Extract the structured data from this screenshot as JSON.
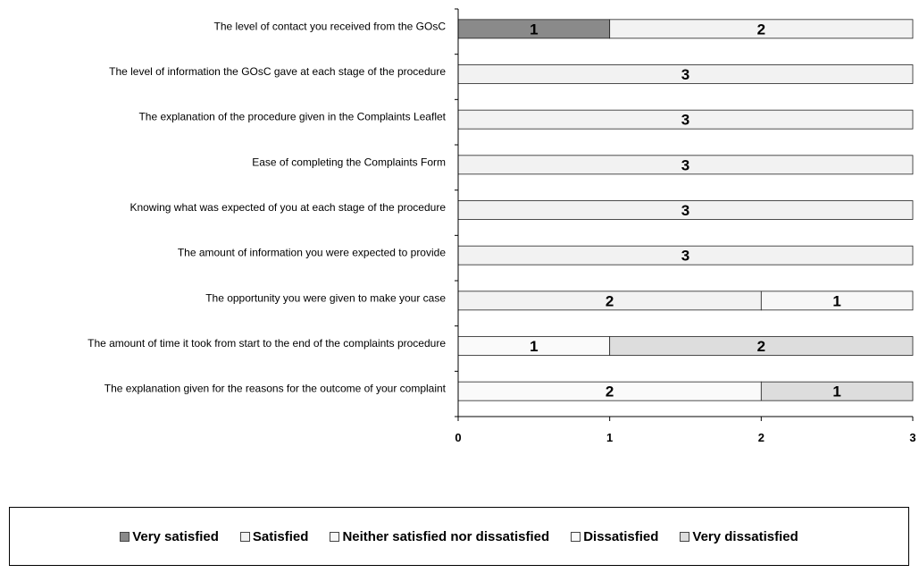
{
  "chart_data": {
    "type": "bar",
    "orientation": "horizontal",
    "stacked": true,
    "categories": [
      "The level of contact you received from the GOsC",
      "The level of information the GOsC gave at each stage of the procedure",
      "The explanation of the procedure given in the Complaints Leaflet",
      "Ease of completing the Complaints Form",
      "Knowing what was expected of you at each stage of the procedure",
      "The amount of information you were expected to provide",
      "The opportunity you were given to make your case",
      "The amount of time it took from start to the end of the complaints procedure",
      "The explanation given for the reasons for the outcome of your complaint"
    ],
    "series": [
      {
        "name": "Very satisfied",
        "color": "#8a8a8a",
        "values": [
          1,
          0,
          0,
          0,
          0,
          0,
          0,
          0,
          0
        ]
      },
      {
        "name": "Satisfied",
        "color": "#f2f2f2",
        "values": [
          2,
          3,
          3,
          3,
          3,
          3,
          2,
          0,
          0
        ]
      },
      {
        "name": "Neither satisfied nor dissatisfied",
        "color": "#f7f7f7",
        "values": [
          0,
          0,
          0,
          0,
          0,
          0,
          1,
          0,
          0
        ]
      },
      {
        "name": "Dissatisfied",
        "color": "#fafafa",
        "values": [
          0,
          0,
          0,
          0,
          0,
          0,
          0,
          1,
          2
        ]
      },
      {
        "name": "Very dissatisfied",
        "color": "#dddddd",
        "values": [
          0,
          0,
          0,
          0,
          0,
          0,
          0,
          2,
          1
        ]
      }
    ],
    "title": "",
    "xlabel": "",
    "ylabel": "",
    "xlim": [
      0,
      3
    ],
    "xticks": [
      "0",
      "1",
      "2",
      "3"
    ],
    "grid": false,
    "legend_position": "bottom"
  }
}
